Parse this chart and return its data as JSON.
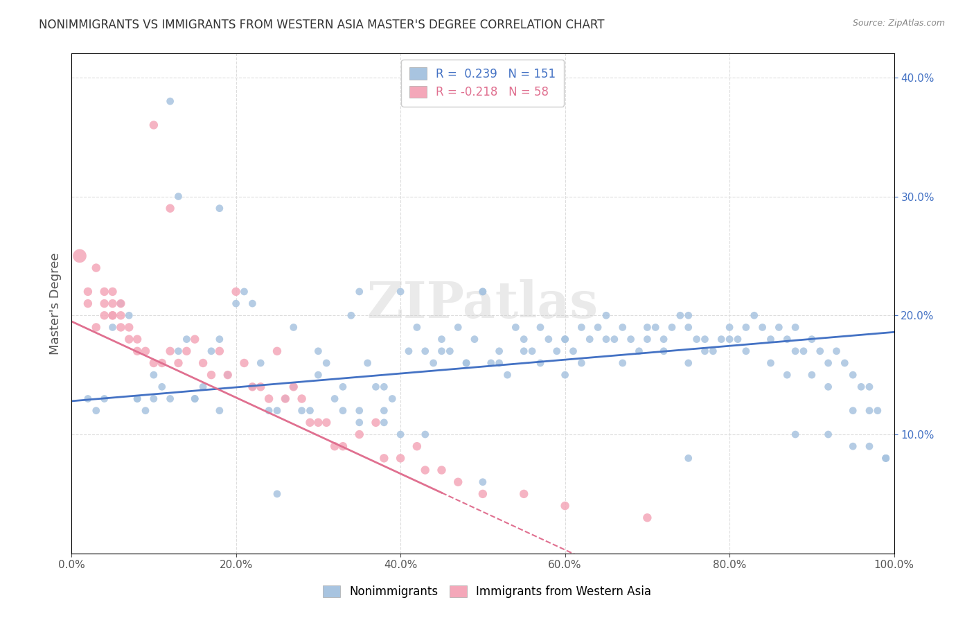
{
  "title": "NONIMMIGRANTS VS IMMIGRANTS FROM WESTERN ASIA MASTER'S DEGREE CORRELATION CHART",
  "source": "Source: ZipAtlas.com",
  "ylabel": "Master's Degree",
  "xlabel_ticks": [
    "0.0%",
    "20.0%",
    "40.0%",
    "60.0%",
    "80.0%",
    "100.0%"
  ],
  "ylabel_ticks": [
    "10.0%",
    "20.0%",
    "30.0%",
    "40.0%"
  ],
  "xlim": [
    0.0,
    1.0
  ],
  "ylim": [
    0.0,
    0.42
  ],
  "nonimm_R": 0.239,
  "nonimm_N": 151,
  "imm_R": -0.218,
  "imm_N": 58,
  "nonimm_color": "#a8c4e0",
  "imm_color": "#f4a7b9",
  "nonimm_line_color": "#4472c4",
  "imm_line_color": "#e07090",
  "watermark": "ZIPatlas",
  "background_color": "#ffffff",
  "grid_color": "#dddddd",
  "nonimm_scatter": {
    "x": [
      0.02,
      0.03,
      0.04,
      0.05,
      0.05,
      0.06,
      0.07,
      0.08,
      0.09,
      0.1,
      0.1,
      0.11,
      0.12,
      0.13,
      0.14,
      0.15,
      0.16,
      0.17,
      0.18,
      0.19,
      0.2,
      0.21,
      0.22,
      0.23,
      0.24,
      0.25,
      0.26,
      0.27,
      0.28,
      0.29,
      0.3,
      0.31,
      0.32,
      0.33,
      0.34,
      0.35,
      0.36,
      0.37,
      0.38,
      0.39,
      0.4,
      0.41,
      0.42,
      0.43,
      0.44,
      0.45,
      0.46,
      0.47,
      0.48,
      0.49,
      0.5,
      0.51,
      0.52,
      0.53,
      0.54,
      0.55,
      0.56,
      0.57,
      0.58,
      0.59,
      0.6,
      0.61,
      0.62,
      0.63,
      0.64,
      0.65,
      0.66,
      0.67,
      0.68,
      0.69,
      0.7,
      0.71,
      0.72,
      0.73,
      0.74,
      0.75,
      0.76,
      0.77,
      0.78,
      0.79,
      0.8,
      0.81,
      0.82,
      0.83,
      0.84,
      0.85,
      0.86,
      0.87,
      0.88,
      0.89,
      0.9,
      0.91,
      0.92,
      0.93,
      0.94,
      0.95,
      0.96,
      0.97,
      0.98,
      0.99,
      0.13,
      0.18,
      0.22,
      0.27,
      0.3,
      0.33,
      0.35,
      0.38,
      0.4,
      0.43,
      0.45,
      0.48,
      0.5,
      0.52,
      0.55,
      0.57,
      0.6,
      0.62,
      0.65,
      0.67,
      0.7,
      0.72,
      0.75,
      0.77,
      0.8,
      0.82,
      0.85,
      0.87,
      0.9,
      0.92,
      0.95,
      0.97,
      0.99,
      0.25,
      0.5,
      0.75,
      0.88,
      0.92,
      0.95,
      0.97,
      0.99,
      0.05,
      0.08,
      0.12,
      0.15,
      0.18,
      0.35,
      0.38,
      0.6,
      0.75,
      0.88
    ],
    "y": [
      0.13,
      0.12,
      0.13,
      0.2,
      0.19,
      0.21,
      0.2,
      0.13,
      0.12,
      0.15,
      0.13,
      0.14,
      0.38,
      0.17,
      0.18,
      0.13,
      0.14,
      0.17,
      0.18,
      0.15,
      0.21,
      0.22,
      0.14,
      0.16,
      0.12,
      0.12,
      0.13,
      0.14,
      0.12,
      0.12,
      0.15,
      0.16,
      0.13,
      0.14,
      0.2,
      0.22,
      0.16,
      0.14,
      0.14,
      0.13,
      0.22,
      0.17,
      0.19,
      0.17,
      0.16,
      0.18,
      0.17,
      0.19,
      0.16,
      0.18,
      0.22,
      0.16,
      0.17,
      0.15,
      0.19,
      0.18,
      0.17,
      0.19,
      0.18,
      0.17,
      0.18,
      0.17,
      0.19,
      0.18,
      0.19,
      0.2,
      0.18,
      0.19,
      0.18,
      0.17,
      0.19,
      0.19,
      0.18,
      0.19,
      0.2,
      0.19,
      0.18,
      0.18,
      0.17,
      0.18,
      0.19,
      0.18,
      0.19,
      0.2,
      0.19,
      0.18,
      0.19,
      0.18,
      0.17,
      0.17,
      0.18,
      0.17,
      0.16,
      0.17,
      0.16,
      0.15,
      0.14,
      0.14,
      0.12,
      0.08,
      0.3,
      0.29,
      0.21,
      0.19,
      0.17,
      0.12,
      0.11,
      0.11,
      0.1,
      0.1,
      0.17,
      0.16,
      0.22,
      0.16,
      0.17,
      0.16,
      0.15,
      0.16,
      0.18,
      0.16,
      0.18,
      0.17,
      0.16,
      0.17,
      0.18,
      0.17,
      0.16,
      0.15,
      0.15,
      0.14,
      0.12,
      0.12,
      0.08,
      0.05,
      0.06,
      0.08,
      0.1,
      0.1,
      0.09,
      0.09,
      0.08,
      0.2,
      0.13,
      0.13,
      0.13,
      0.12,
      0.12,
      0.12,
      0.18,
      0.2,
      0.19
    ]
  },
  "imm_scatter": {
    "x": [
      0.01,
      0.02,
      0.02,
      0.03,
      0.03,
      0.04,
      0.04,
      0.04,
      0.05,
      0.05,
      0.05,
      0.05,
      0.06,
      0.06,
      0.06,
      0.07,
      0.07,
      0.08,
      0.08,
      0.09,
      0.1,
      0.1,
      0.11,
      0.12,
      0.12,
      0.13,
      0.14,
      0.15,
      0.16,
      0.17,
      0.18,
      0.19,
      0.2,
      0.21,
      0.22,
      0.23,
      0.24,
      0.25,
      0.26,
      0.27,
      0.28,
      0.29,
      0.3,
      0.31,
      0.32,
      0.33,
      0.35,
      0.37,
      0.38,
      0.4,
      0.42,
      0.43,
      0.45,
      0.47,
      0.5,
      0.55,
      0.6,
      0.7
    ],
    "y": [
      0.25,
      0.21,
      0.22,
      0.24,
      0.19,
      0.21,
      0.2,
      0.22,
      0.2,
      0.2,
      0.21,
      0.22,
      0.21,
      0.19,
      0.2,
      0.18,
      0.19,
      0.17,
      0.18,
      0.17,
      0.36,
      0.16,
      0.16,
      0.17,
      0.29,
      0.16,
      0.17,
      0.18,
      0.16,
      0.15,
      0.17,
      0.15,
      0.22,
      0.16,
      0.14,
      0.14,
      0.13,
      0.17,
      0.13,
      0.14,
      0.13,
      0.11,
      0.11,
      0.11,
      0.09,
      0.09,
      0.1,
      0.11,
      0.08,
      0.08,
      0.09,
      0.07,
      0.07,
      0.06,
      0.05,
      0.05,
      0.04,
      0.03
    ]
  },
  "imm_sizes": [
    200,
    80,
    80,
    80,
    80,
    80,
    80,
    80,
    80,
    80,
    80,
    80,
    80,
    80,
    80,
    80,
    80,
    80,
    80,
    80,
    80,
    80,
    80,
    80,
    80,
    80,
    80,
    80,
    80,
    80,
    80,
    80,
    80,
    80,
    80,
    80,
    80,
    80,
    80,
    80,
    80,
    80,
    80,
    80,
    80,
    80,
    80,
    80,
    80,
    80,
    80,
    80,
    80,
    80,
    80,
    80,
    80,
    80
  ],
  "nonimm_line_intercept": 0.128,
  "nonimm_line_slope": 0.058,
  "imm_line_intercept": 0.195,
  "imm_line_slope": -0.32
}
